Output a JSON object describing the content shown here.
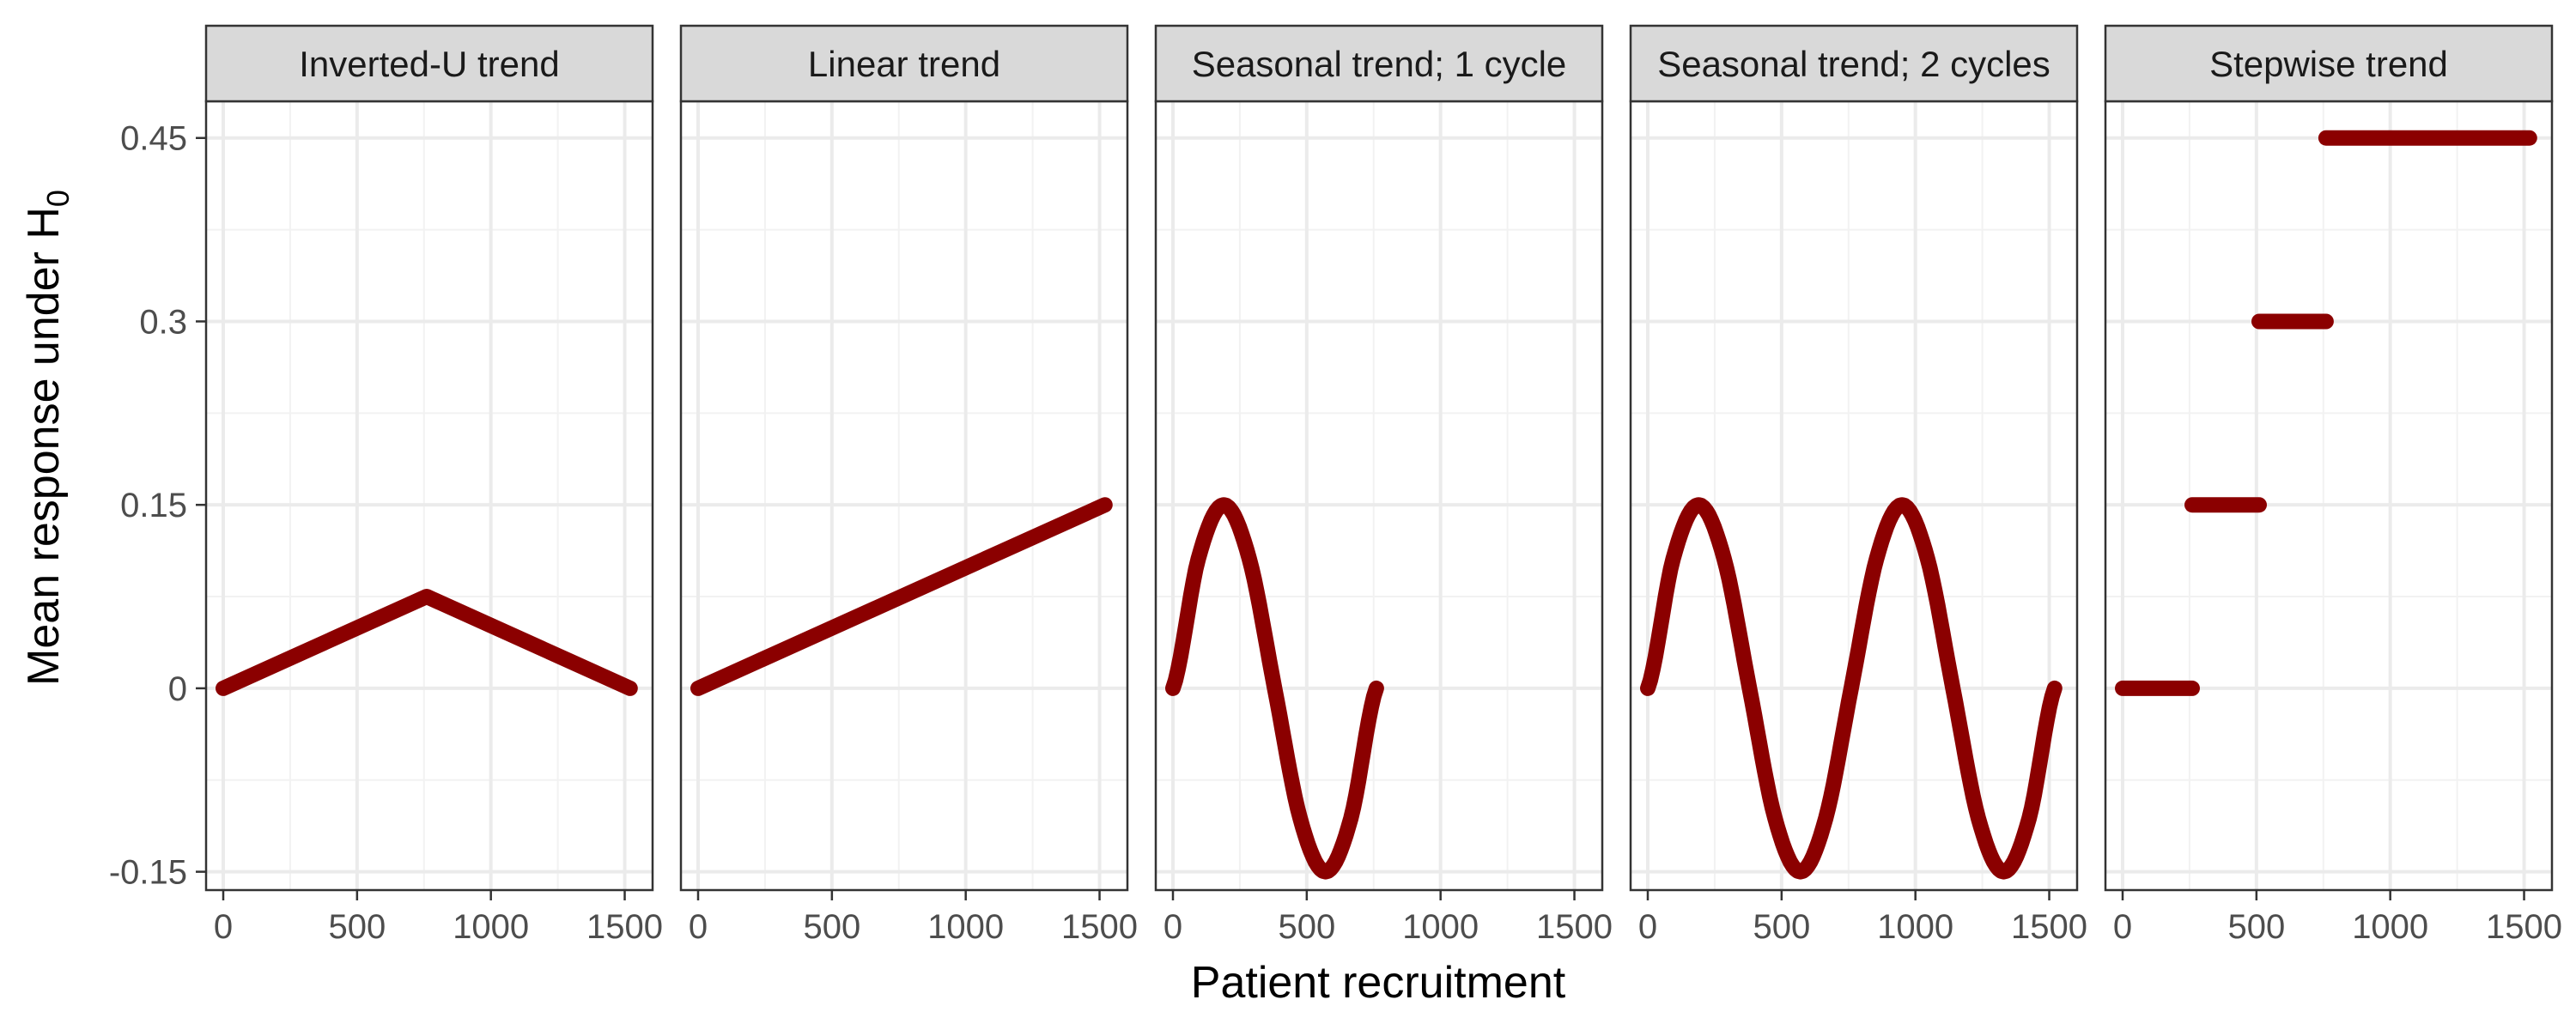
{
  "chart_data": {
    "type": "line",
    "facet_layout": "1 row x 5 columns",
    "ylabel": "Mean response under H",
    "ylabel_subscript": "0",
    "xlabel": "Patient recruitment",
    "xlim": [
      0,
      1540
    ],
    "ylim": [
      -0.165,
      0.48
    ],
    "x_ticks": [
      0,
      500,
      1000,
      1500
    ],
    "x_tick_labels": [
      "0",
      "500",
      "1000",
      "1500"
    ],
    "y_ticks": [
      -0.15,
      0,
      0.15,
      0.3,
      0.45
    ],
    "y_tick_labels": [
      "-0.15",
      "0",
      "0.15",
      "0.3",
      "0.45"
    ],
    "grid": true,
    "line_color": "#8b0000",
    "panels": [
      {
        "title": "Inverted-U trend",
        "segments": [
          [
            [
              0,
              0
            ],
            [
              760,
              0.075
            ],
            [
              1520,
              0
            ]
          ]
        ]
      },
      {
        "title": "Linear trend",
        "segments": [
          [
            [
              0,
              0
            ],
            [
              1520,
              0.15
            ]
          ]
        ]
      },
      {
        "title": "Seasonal trend; 1 cycle",
        "segments": [
          [
            [
              0,
              0.0
            ],
            [
              95,
              0.1061
            ],
            [
              190,
              0.15
            ],
            [
              285,
              0.1061
            ],
            [
              380,
              0.0
            ],
            [
              475,
              -0.1061
            ],
            [
              570,
              -0.15
            ],
            [
              665,
              -0.1061
            ],
            [
              760,
              0.0
            ]
          ]
        ]
      },
      {
        "title": "Seasonal trend; 2 cycles",
        "segments": [
          [
            [
              0,
              0.0
            ],
            [
              95,
              0.1061
            ],
            [
              190,
              0.15
            ],
            [
              285,
              0.1061
            ],
            [
              380,
              0.0
            ],
            [
              475,
              -0.1061
            ],
            [
              570,
              -0.15
            ],
            [
              665,
              -0.1061
            ],
            [
              760,
              0.0
            ],
            [
              855,
              0.1061
            ],
            [
              950,
              0.15
            ],
            [
              1045,
              0.1061
            ],
            [
              1140,
              0.0
            ],
            [
              1235,
              -0.1061
            ],
            [
              1330,
              -0.15
            ],
            [
              1425,
              -0.1061
            ],
            [
              1520,
              0.0
            ]
          ]
        ]
      },
      {
        "title": "Stepwise trend",
        "segments": [
          [
            [
              0,
              0
            ],
            [
              260,
              0
            ]
          ],
          [
            [
              260,
              0.15
            ],
            [
              510,
              0.15
            ]
          ],
          [
            [
              510,
              0.3
            ],
            [
              760,
              0.3
            ]
          ],
          [
            [
              760,
              0.45
            ],
            [
              1520,
              0.45
            ]
          ]
        ]
      }
    ]
  }
}
